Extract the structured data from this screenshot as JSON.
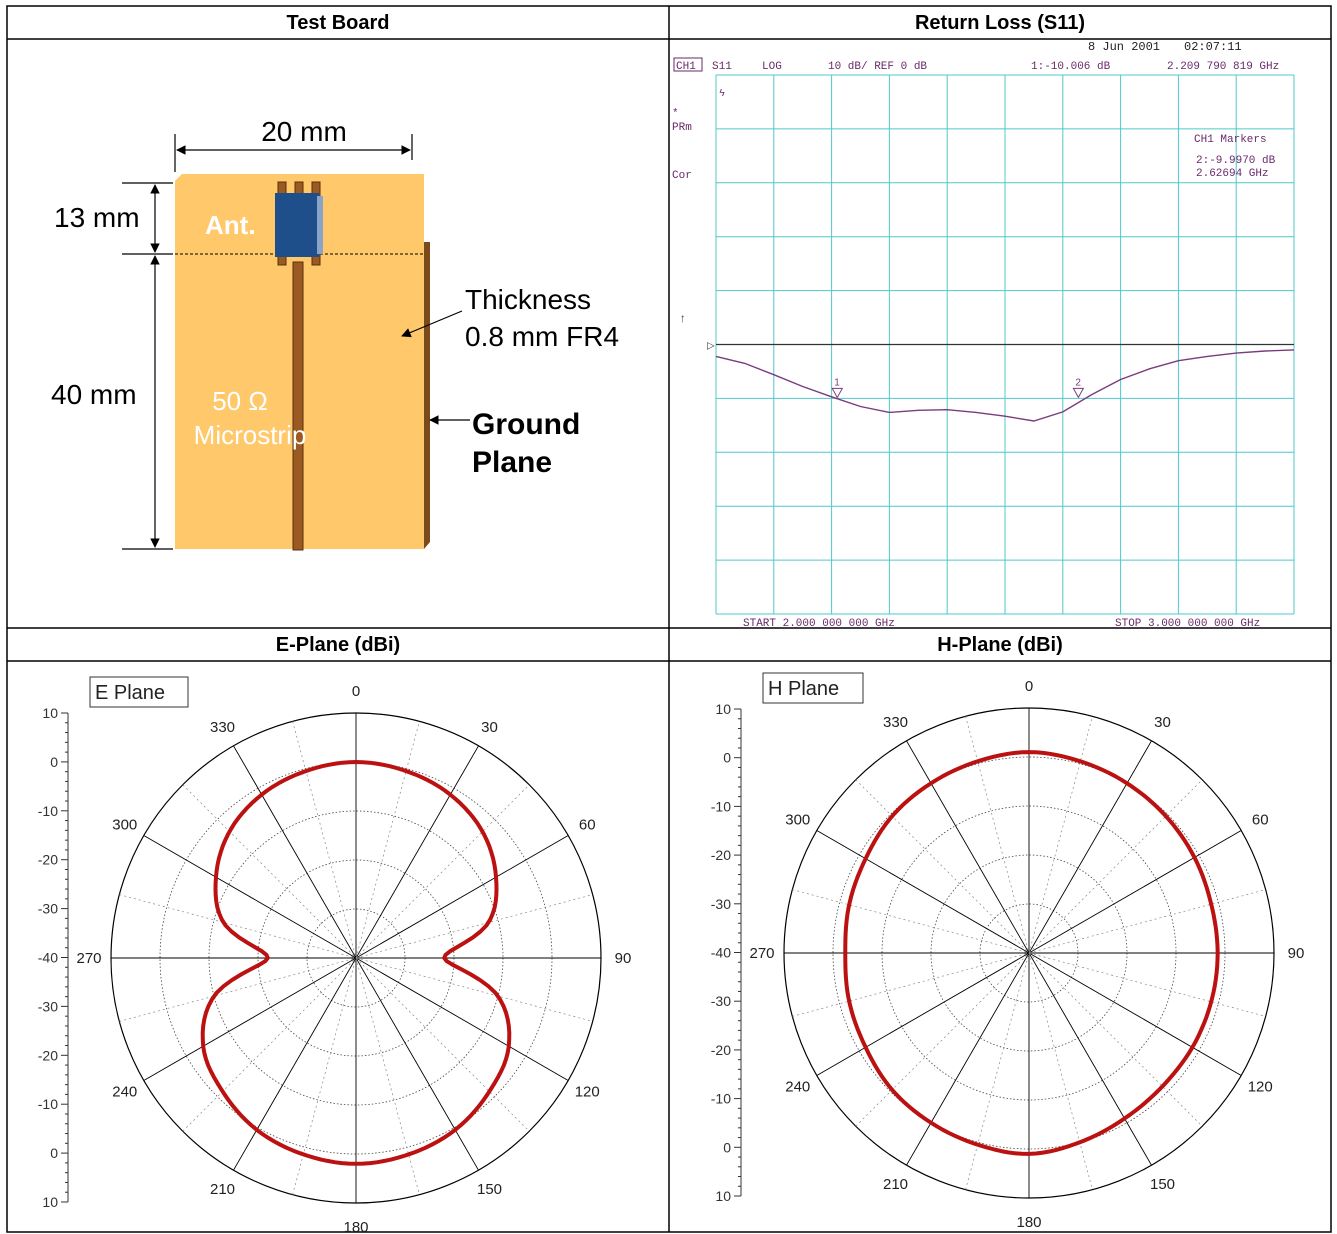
{
  "headers": {
    "test_board": "Test Board",
    "return_loss": "Return Loss (S11)",
    "e_plane": "E-Plane (dBi)",
    "h_plane": "H-Plane (dBi)"
  },
  "board": {
    "width_label": "20 mm",
    "top_label": "13 mm",
    "main_label": "40 mm",
    "ant_label": "Ant.",
    "thickness_line1": "Thickness",
    "thickness_line2": "0.8 mm FR4",
    "microstrip_line1": "50 Ω",
    "microstrip_line2": "Microstrip",
    "ground_line1": "Ground",
    "ground_line2": "Plane",
    "colors": {
      "board": "#fec86b",
      "ant": "#1f4f8a",
      "strip": "#9a5a22"
    }
  },
  "analyzer": {
    "date": "8 Jun 2001",
    "time": "02:07:11",
    "ch": "CH1",
    "param": "S11",
    "format": "LOG",
    "scale": "10 dB/ REF 0 dB",
    "marker1_readout": "1:-10.006 dB",
    "marker1_freq": "2.209 790 819 GHz",
    "side_star": "*",
    "side_prm": "PRm",
    "side_cor": "Cor",
    "markers_title": "CH1 Markers",
    "marker2_readout": "2:-9.9970 dB",
    "marker2_freq": "2.62694 GHz",
    "start": "START 2.000 000 000 GHz",
    "stop": "STOP 3.000 000 000 GHz",
    "grid_color": "#4fc8c8",
    "trace_color": "#7a3c7a"
  },
  "chart_data": [
    {
      "type": "line",
      "title": "Return Loss (S11)",
      "xlabel": "",
      "ylabel": "",
      "xlim": [
        2.0,
        3.0
      ],
      "ylim": [
        -50,
        50
      ],
      "grid": true,
      "x": [
        2.0,
        2.05,
        2.1,
        2.15,
        2.2,
        2.25,
        2.3,
        2.35,
        2.4,
        2.45,
        2.5,
        2.55,
        2.6,
        2.65,
        2.7,
        2.75,
        2.8,
        2.85,
        2.9,
        2.95,
        3.0
      ],
      "series": [
        {
          "values": [
            -2.2,
            -3.5,
            -5.6,
            -7.8,
            -9.7,
            -11.5,
            -12.6,
            -12.2,
            -12.1,
            -12.6,
            -13.3,
            -14.2,
            -12.5,
            -9.3,
            -6.5,
            -4.5,
            -3.0,
            -2.2,
            -1.6,
            -1.2,
            -1.0
          ]
        }
      ],
      "markers": [
        {
          "label": "1",
          "x": 2.2098,
          "y": -10.006
        },
        {
          "label": "2",
          "x": 2.62694,
          "y": -9.997
        }
      ]
    },
    {
      "type": "polar",
      "title": "E Plane",
      "angle_labels": [
        "0",
        "30",
        "60",
        "90",
        "120",
        "150",
        "180",
        "210",
        "240",
        "270",
        "300",
        "330"
      ],
      "scale_labels": [
        "10",
        "0",
        "-10",
        "-20",
        "-30",
        "-40",
        "-30",
        "-20",
        "-10",
        "0",
        "10"
      ],
      "rlim": [
        -40,
        10
      ],
      "angles": [
        0,
        15,
        30,
        45,
        60,
        75,
        90,
        105,
        120,
        135,
        150,
        165,
        180,
        195,
        210,
        225,
        240,
        255,
        270,
        285,
        300,
        315,
        330,
        345
      ],
      "series": [
        {
          "values": [
            0,
            -0.5,
            -1.5,
            -3.5,
            -7,
            -12,
            -22,
            -10,
            -4,
            -1.5,
            0.5,
            1.5,
            2,
            1.5,
            0.5,
            -1.5,
            -4,
            -10,
            -22,
            -12,
            -7,
            -3.5,
            -1.5,
            -0.5
          ]
        }
      ],
      "line_color": "#bb1111"
    },
    {
      "type": "polar",
      "title": "H Plane",
      "angle_labels": [
        "0",
        "30",
        "60",
        "90",
        "120",
        "150",
        "180",
        "210",
        "240",
        "270",
        "300",
        "330"
      ],
      "scale_labels": [
        "10",
        "0",
        "-10",
        "-20",
        "-30",
        "-40",
        "-30",
        "-20",
        "-10",
        "0",
        "10"
      ],
      "rlim": [
        -40,
        10
      ],
      "angles": [
        0,
        15,
        30,
        45,
        60,
        75,
        90,
        105,
        120,
        135,
        150,
        165,
        180,
        195,
        210,
        225,
        240,
        255,
        270,
        285,
        300,
        315,
        330,
        345
      ],
      "series": [
        {
          "values": [
            1,
            0.5,
            0,
            -0.5,
            -1,
            -1.5,
            -1.5,
            -1.5,
            -1.5,
            -1.5,
            -1,
            0,
            1,
            0.5,
            0,
            -0.5,
            -1.5,
            -2,
            -2.5,
            -2,
            -1.5,
            -0.5,
            0,
            0.5
          ]
        }
      ],
      "line_color": "#bb1111"
    }
  ]
}
